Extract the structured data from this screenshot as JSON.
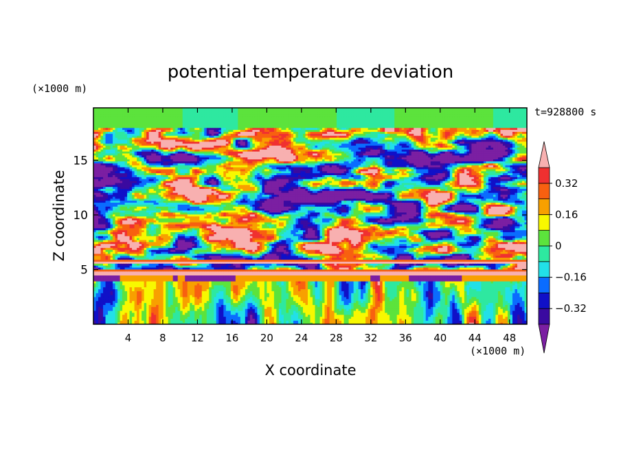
{
  "chart_data": {
    "type": "heatmap",
    "title": "potential temperature deviation",
    "xlabel": "X coordinate",
    "ylabel": "Z coordinate",
    "x_unit": "(×1000 m)",
    "y_unit": "(×1000 m)",
    "time_label": "t=928800 s",
    "xlim": [
      0,
      50
    ],
    "ylim": [
      0,
      19.8
    ],
    "x_ticks": [
      4,
      8,
      12,
      16,
      20,
      24,
      28,
      32,
      36,
      40,
      44,
      48
    ],
    "y_ticks": [
      5,
      10,
      15
    ],
    "colorbar": {
      "levels": [
        -0.4,
        -0.32,
        -0.24,
        -0.16,
        -0.08,
        0,
        0.08,
        0.16,
        0.24,
        0.32,
        0.4
      ],
      "tick_labels": [
        "0.32",
        "0.16",
        "0",
        "−0.16",
        "−0.32"
      ],
      "tick_values": [
        0.32,
        0.16,
        0,
        -0.16,
        -0.32
      ],
      "colors": [
        "#7b1fa2",
        "#3a0aa0",
        "#1010c8",
        "#0a6cff",
        "#22e0e8",
        "#2ee8a0",
        "#5ce33c",
        "#f8f800",
        "#f8a000",
        "#f86010",
        "#f03030",
        "#f8b0b0"
      ],
      "extend": "both"
    }
  }
}
